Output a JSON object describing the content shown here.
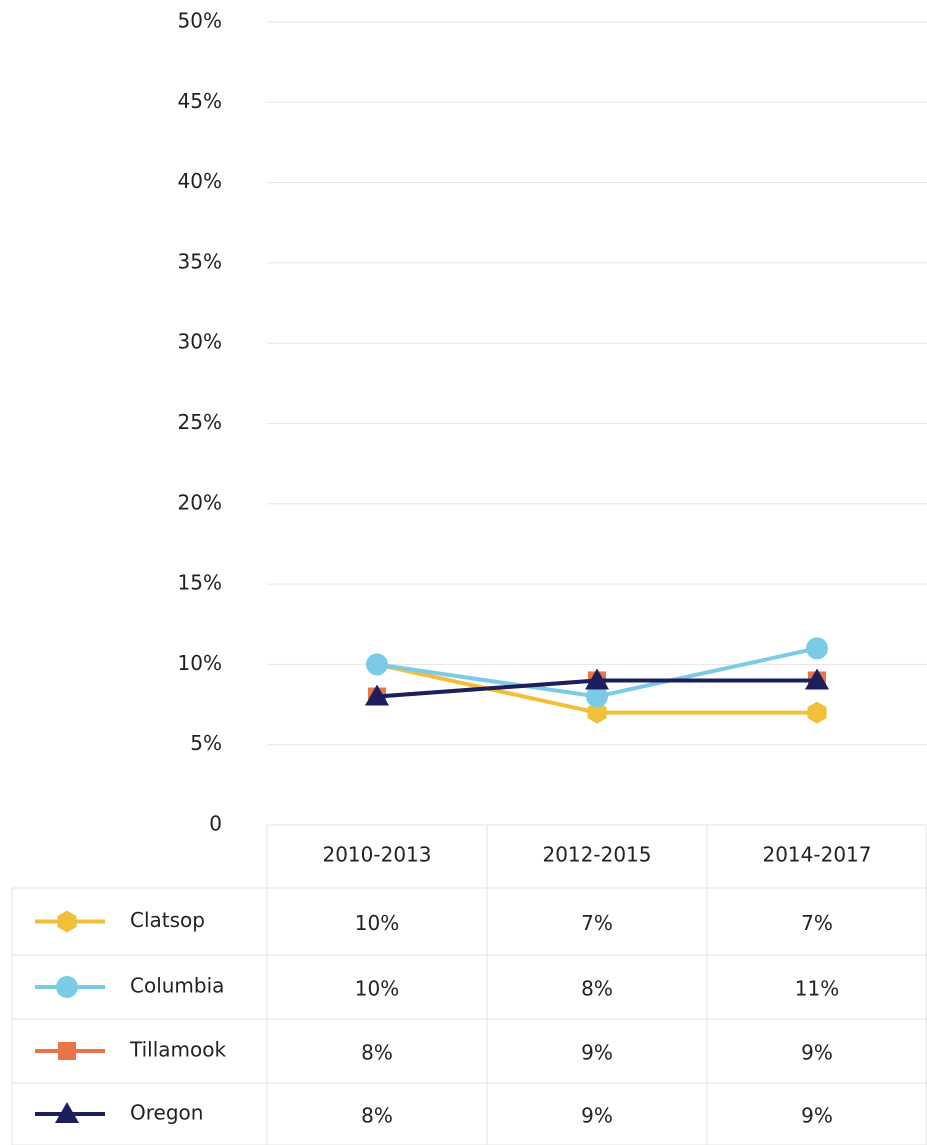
{
  "chart_data": {
    "type": "line",
    "categories": [
      "2010-2013",
      "2012-2015",
      "2014-2017"
    ],
    "series": [
      {
        "name": "Clatsop",
        "color": "#f2bf3a",
        "marker": "hexagon",
        "values": [
          10,
          7,
          7
        ],
        "value_labels": [
          "10%",
          "7%",
          "7%"
        ]
      },
      {
        "name": "Columbia",
        "color": "#7ccbe6",
        "marker": "circle",
        "values": [
          10,
          8,
          11
        ],
        "value_labels": [
          "10%",
          "8%",
          "11%"
        ]
      },
      {
        "name": "Tillamook",
        "color": "#e8744a",
        "marker": "square",
        "values": [
          8,
          9,
          9
        ],
        "value_labels": [
          "8%",
          "9%",
          "9%"
        ]
      },
      {
        "name": "Oregon",
        "color": "#1b1f5e",
        "marker": "triangle",
        "values": [
          8,
          9,
          9
        ],
        "value_labels": [
          "8%",
          "9%",
          "9%"
        ]
      }
    ],
    "ylim": [
      0,
      50
    ],
    "yticks": [
      0,
      {
        "value": 5,
        "label": "5%"
      },
      {
        "value": 10,
        "label": "10%"
      },
      {
        "value": 15,
        "label": "15%"
      },
      {
        "value": 20,
        "label": "20%"
      },
      {
        "value": 25,
        "label": "25%"
      },
      {
        "value": 30,
        "label": "30%"
      },
      {
        "value": 35,
        "label": "35%"
      },
      {
        "value": 40,
        "label": "40%"
      },
      {
        "value": 45,
        "label": "45%"
      },
      {
        "value": 50,
        "label": "50%"
      }
    ],
    "grid": true
  }
}
